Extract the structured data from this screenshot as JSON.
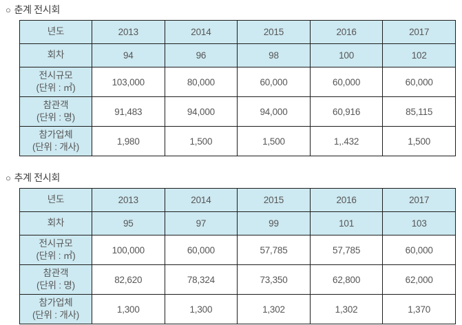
{
  "colors": {
    "cell_blue": "#cde9f1",
    "border": "#1c1c1c",
    "text": "#565656",
    "title_text": "#3d3d3d",
    "background": "#ffffff"
  },
  "sections": [
    {
      "bullet": "○",
      "title": "춘계 전시회",
      "rows": [
        {
          "header": true,
          "label": "년도",
          "unit": "",
          "values": [
            "2013",
            "2014",
            "2015",
            "2016",
            "2017"
          ]
        },
        {
          "header": true,
          "label": "회차",
          "unit": "",
          "values": [
            "94",
            "96",
            "98",
            "100",
            "102"
          ]
        },
        {
          "header": false,
          "label": "전시규모",
          "unit": "(단위 : ㎡)",
          "values": [
            "103,000",
            "80,000",
            "60,000",
            "60,000",
            "60,000"
          ]
        },
        {
          "header": false,
          "label": "참관객",
          "unit": "(단위 : 명)",
          "values": [
            "91,483",
            "94,000",
            "94,000",
            "60,916",
            "85,115"
          ]
        },
        {
          "header": false,
          "label": "참가업체",
          "unit": "(단위 : 개사)",
          "values": [
            "1,980",
            "1,500",
            "1,500",
            "1,.432",
            "1,500"
          ]
        }
      ]
    },
    {
      "bullet": "○",
      "title": "추계 전시회",
      "rows": [
        {
          "header": true,
          "label": "년도",
          "unit": "",
          "values": [
            "2013",
            "2014",
            "2015",
            "2016",
            "2017"
          ]
        },
        {
          "header": true,
          "label": "회차",
          "unit": "",
          "values": [
            "95",
            "97",
            "99",
            "101",
            "103"
          ]
        },
        {
          "header": false,
          "label": "전시규모",
          "unit": "(단위 : ㎡)",
          "values": [
            "100,000",
            "60,000",
            "57,785",
            "57,785",
            "60,000"
          ]
        },
        {
          "header": false,
          "label": "참관객",
          "unit": "(단위 : 명)",
          "values": [
            "82,620",
            "78,324",
            "73,350",
            "62,800",
            "62,000"
          ]
        },
        {
          "header": false,
          "label": "참가업체",
          "unit": "(단위 : 개사)",
          "values": [
            "1,300",
            "1,300",
            "1,302",
            "1,302",
            "1,370"
          ]
        }
      ]
    }
  ]
}
